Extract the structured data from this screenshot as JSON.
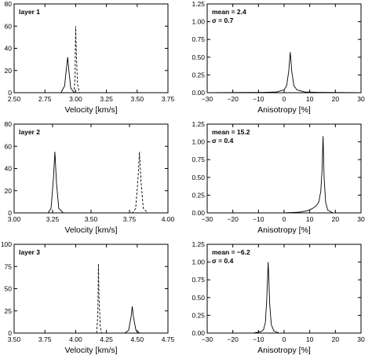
{
  "chart_data": [
    {
      "type": "line",
      "panel": "layer-1-velocity",
      "annotation": "layer 1",
      "xlabel": "Velocity [km/s]",
      "ylabel": "",
      "xlim": [
        2.5,
        3.75
      ],
      "ylim": [
        0,
        80
      ],
      "xticks": [
        2.5,
        2.75,
        3.0,
        3.25,
        3.5,
        3.75
      ],
      "xtick_labels": [
        "2.50",
        "2.75",
        "3.00",
        "3.25",
        "3.50",
        "3.75"
      ],
      "yticks": [
        0,
        20,
        40,
        60,
        80
      ],
      "ytick_labels": [
        "0",
        "20",
        "40",
        "60",
        "80"
      ],
      "series": [
        {
          "style": "solid",
          "x": [
            2.5,
            2.88,
            2.91,
            2.925,
            2.935,
            2.945,
            2.96,
            2.99,
            3.1,
            3.75
          ],
          "y": [
            0,
            0,
            6,
            22,
            32,
            20,
            4,
            0,
            0,
            0
          ]
        },
        {
          "style": "dashed",
          "x": [
            2.5,
            2.985,
            2.995,
            3.0,
            3.005,
            3.015,
            3.03,
            3.75
          ],
          "y": [
            0,
            0,
            12,
            60,
            38,
            8,
            0,
            0
          ]
        }
      ]
    },
    {
      "type": "line",
      "panel": "layer-1-anisotropy",
      "annotation": [
        "mean = 2.4",
        "σ = 0.7"
      ],
      "xlabel": "Anisotropy [%]",
      "ylabel": "",
      "xlim": [
        -30,
        30
      ],
      "ylim": [
        0,
        1.25
      ],
      "xticks": [
        -30,
        -20,
        -10,
        0,
        10,
        20,
        30
      ],
      "xtick_labels": [
        "−30",
        "−20",
        "−10",
        "0",
        "10",
        "20",
        "30"
      ],
      "yticks": [
        0,
        0.25,
        0.5,
        0.75,
        1.0,
        1.25
      ],
      "ytick_labels": [
        "0.00",
        "0.25",
        "0.50",
        "0.75",
        "1.00",
        "1.25"
      ],
      "series": [
        {
          "style": "solid",
          "x": [
            -30,
            -8,
            -3,
            0,
            1,
            1.8,
            2.4,
            3.0,
            3.8,
            5,
            8,
            13,
            30
          ],
          "y": [
            0,
            0.005,
            0.01,
            0.04,
            0.1,
            0.3,
            0.57,
            0.3,
            0.1,
            0.04,
            0.01,
            0.005,
            0
          ]
        }
      ]
    },
    {
      "type": "line",
      "panel": "layer-2-velocity",
      "annotation": "layer 2",
      "xlabel": "Velocity [km/s]",
      "ylabel": "",
      "xlim": [
        3.0,
        4.0
      ],
      "ylim": [
        0,
        80
      ],
      "xticks": [
        3.0,
        3.25,
        3.5,
        3.75,
        4.0
      ],
      "xtick_labels": [
        "3.00",
        "3.25",
        "3.50",
        "3.75",
        "4.00"
      ],
      "yticks": [
        0,
        20,
        40,
        60,
        80
      ],
      "ytick_labels": [
        "0",
        "20",
        "40",
        "60",
        "80"
      ],
      "series": [
        {
          "style": "solid",
          "x": [
            3.0,
            3.22,
            3.24,
            3.255,
            3.265,
            3.275,
            3.29,
            3.32,
            4.0
          ],
          "y": [
            0,
            0,
            4,
            30,
            55,
            28,
            4,
            0,
            0
          ]
        },
        {
          "style": "dashed",
          "x": [
            3.0,
            3.77,
            3.79,
            3.805,
            3.815,
            3.825,
            3.84,
            3.87,
            4.0
          ],
          "y": [
            0,
            0,
            4,
            30,
            55,
            28,
            4,
            0,
            0
          ]
        }
      ]
    },
    {
      "type": "line",
      "panel": "layer-2-anisotropy",
      "annotation": [
        "mean = 15.2",
        "σ = 0.4"
      ],
      "xlabel": "Anisotropy [%]",
      "ylabel": "",
      "xlim": [
        -30,
        30
      ],
      "ylim": [
        0,
        1.25
      ],
      "xticks": [
        -30,
        -20,
        -10,
        0,
        10,
        20,
        30
      ],
      "xtick_labels": [
        "−30",
        "−20",
        "−10",
        "0",
        "10",
        "20",
        "30"
      ],
      "yticks": [
        0,
        0.25,
        0.5,
        0.75,
        1.0,
        1.25
      ],
      "ytick_labels": [
        "0.00",
        "0.25",
        "0.50",
        "0.75",
        "1.00",
        "1.25"
      ],
      "series": [
        {
          "style": "solid",
          "x": [
            -30,
            0,
            6,
            9,
            11,
            12.5,
            13.5,
            14.3,
            14.8,
            15.2,
            15.6,
            16.2,
            17,
            19,
            30
          ],
          "y": [
            0,
            0,
            0.01,
            0.03,
            0.06,
            0.1,
            0.15,
            0.3,
            0.6,
            1.08,
            0.5,
            0.15,
            0.04,
            0,
            0
          ]
        }
      ]
    },
    {
      "type": "line",
      "panel": "layer-3-velocity",
      "annotation": "layer 3",
      "xlabel": "Velocity [km/s]",
      "ylabel": "",
      "xlim": [
        3.5,
        4.75
      ],
      "ylim": [
        0,
        100
      ],
      "xticks": [
        3.5,
        3.75,
        4.0,
        4.25,
        4.5,
        4.75
      ],
      "xtick_labels": [
        "3.50",
        "3.75",
        "4.00",
        "4.25",
        "4.50",
        "4.75"
      ],
      "yticks": [
        0,
        25,
        50,
        75,
        100
      ],
      "ytick_labels": [
        "0",
        "25",
        "50",
        "75",
        "100"
      ],
      "series": [
        {
          "style": "solid",
          "x": [
            3.5,
            4.4,
            4.43,
            4.45,
            4.46,
            4.47,
            4.49,
            4.52,
            4.75
          ],
          "y": [
            0,
            0,
            3,
            18,
            30,
            18,
            3,
            0,
            0
          ]
        },
        {
          "style": "dashed",
          "x": [
            3.5,
            4.17,
            4.18,
            4.185,
            4.19,
            4.2,
            4.21,
            4.75
          ],
          "y": [
            0,
            0,
            20,
            78,
            40,
            8,
            0,
            0
          ]
        }
      ]
    },
    {
      "type": "line",
      "panel": "layer-3-anisotropy",
      "annotation": [
        "mean = −6.2",
        "σ = 0.4"
      ],
      "xlabel": "Anisotropy [%]",
      "ylabel": "",
      "xlim": [
        -30,
        30
      ],
      "ylim": [
        0,
        1.25
      ],
      "xticks": [
        -30,
        -20,
        -10,
        0,
        10,
        20,
        30
      ],
      "xtick_labels": [
        "−30",
        "−20",
        "−10",
        "0",
        "10",
        "20",
        "30"
      ],
      "yticks": [
        0,
        0.25,
        0.5,
        0.75,
        1.0,
        1.25
      ],
      "ytick_labels": [
        "0.00",
        "0.25",
        "0.50",
        "0.75",
        "1.00",
        "1.25"
      ],
      "series": [
        {
          "style": "solid",
          "x": [
            -30,
            -12,
            -9,
            -8,
            -7.3,
            -6.8,
            -6.2,
            -5.6,
            -5.0,
            -4,
            -2,
            30
          ],
          "y": [
            0,
            0,
            0.02,
            0.05,
            0.15,
            0.45,
            1.0,
            0.4,
            0.12,
            0.03,
            0,
            0
          ]
        }
      ]
    }
  ]
}
